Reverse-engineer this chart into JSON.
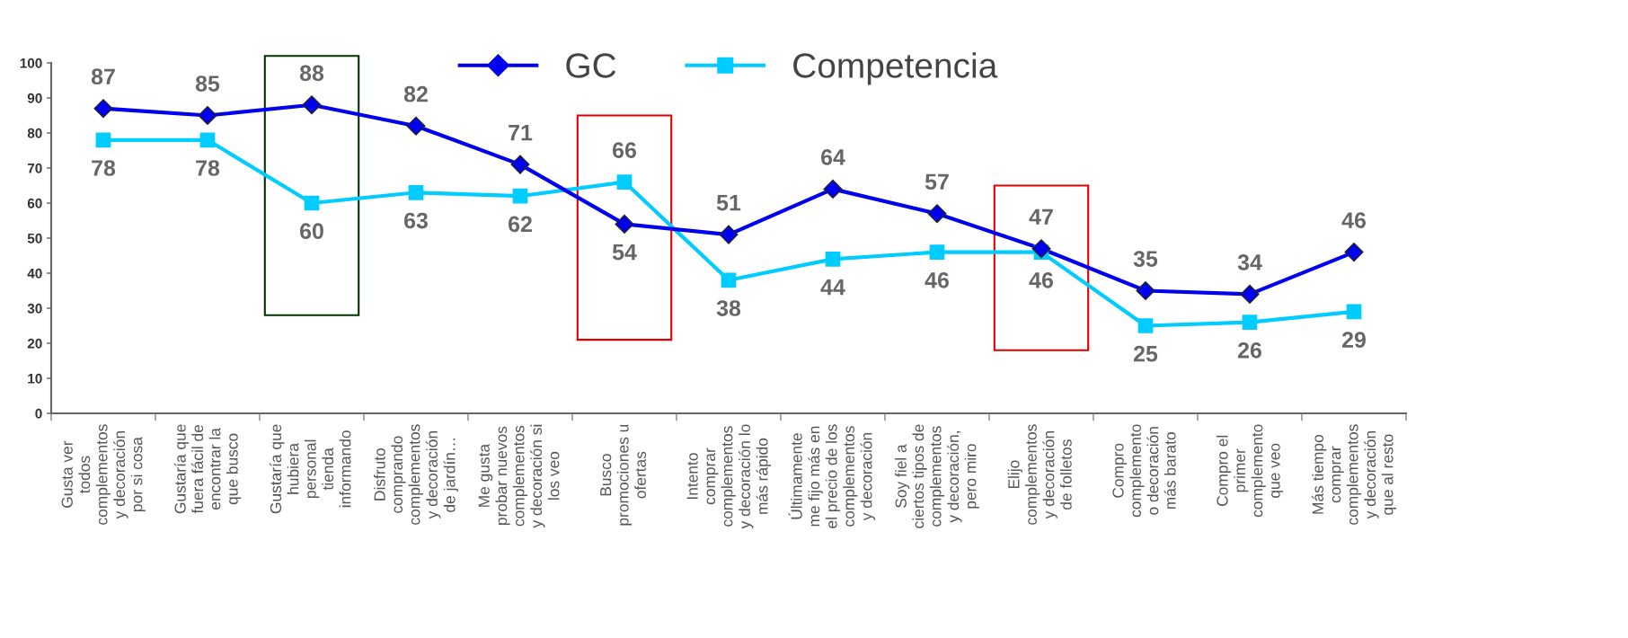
{
  "chart_data": {
    "type": "line",
    "categories": [
      "Gusta ver\ntodos\ncomplementos\ny decoración\npor si cosa",
      "Gustaría que\nfuera fácil de\nencontrar la\nque busco",
      "Gustaría que\nhubiera\npersonal\ntienda\ninformando",
      "Disfruto\ncomprando\ncomplementos\ny decoración\nde jardín…",
      "Me gusta\nprobar nuevos\ncomplementos\ny decoración si\nlos veo",
      "Busco\npromociones u\nofertas",
      "Intento\ncomprar\ncomplementos\ny decoración lo\nmás rápido",
      "Últimamente\nme fijo más en\nel precio de los\ncomplementos\ny decoración",
      "Soy fiel a\nciertos tipos de\ncomplementos\ny decoración,\npero miro",
      "Elijo\ncomplementos\ny decoración\nde folletos",
      "Compro\ncomplemento\no decoración\nmás barato",
      "Compro el\nprimer\ncomplemento\nque veo",
      "Más tiempo\ncomprar\ncomplementos\ny decoración\nque al resto"
    ],
    "series": [
      {
        "name": "GC",
        "color": "#0000ee",
        "marker": "diamond",
        "values": [
          87,
          85,
          88,
          82,
          71,
          54,
          51,
          64,
          57,
          47,
          35,
          34,
          46
        ]
      },
      {
        "name": "Competencia",
        "color": "#00ccff",
        "marker": "square",
        "values": [
          78,
          78,
          60,
          63,
          62,
          66,
          38,
          44,
          46,
          46,
          25,
          26,
          29
        ]
      }
    ],
    "ylim": [
      0,
      100
    ],
    "yticks": [
      0,
      10,
      20,
      30,
      40,
      50,
      60,
      70,
      80,
      90,
      100
    ],
    "data_labels": true,
    "legend": "top",
    "grid": false,
    "line_style": "solid"
  }
}
